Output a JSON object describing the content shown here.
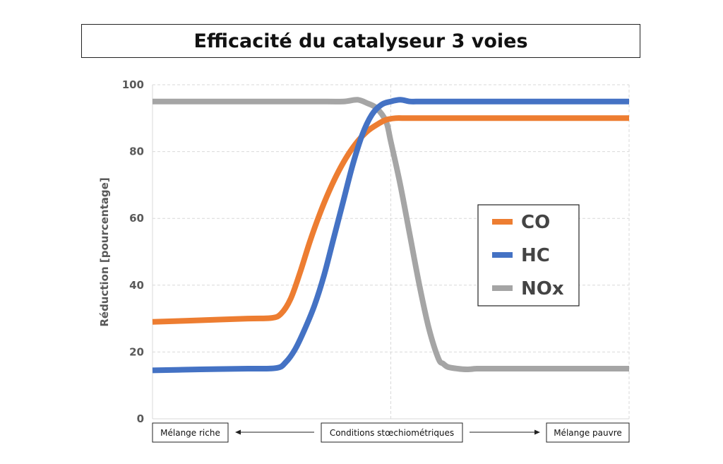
{
  "chart_data": {
    "type": "line",
    "title": "Efficacité du catalyseur 3 voies",
    "ylabel": "Réduction [pourcentage]",
    "xlabel": "",
    "ylim": [
      0,
      100
    ],
    "yticks": [
      0,
      20,
      40,
      60,
      80,
      100
    ],
    "xlim": [
      0,
      100
    ],
    "grid": true,
    "legend_position": "right",
    "x_annotations": {
      "left": "Mélange riche",
      "center": "Conditions stœchiométriques",
      "right": "Mélange pauvre"
    },
    "series": [
      {
        "name": "CO",
        "color": "#ED7D31",
        "x": [
          0,
          10,
          20,
          25,
          27,
          29,
          31,
          33,
          35,
          37,
          39,
          41,
          43,
          45,
          47,
          49,
          51,
          53,
          55,
          57,
          60,
          70,
          80,
          90,
          100
        ],
        "y": [
          29,
          29.5,
          30,
          30.2,
          31.5,
          36,
          44,
          53,
          61,
          68,
          74,
          79,
          83,
          86,
          88,
          89.5,
          90,
          90,
          90,
          90,
          90,
          90,
          90,
          90,
          90
        ]
      },
      {
        "name": "HC",
        "color": "#4472C4",
        "x": [
          0,
          10,
          20,
          26,
          28,
          30,
          32,
          34,
          36,
          38,
          40,
          42,
          44,
          46,
          48,
          50,
          52,
          54,
          56,
          58,
          60,
          70,
          80,
          90,
          100
        ],
        "y": [
          14.5,
          14.8,
          15,
          15.2,
          17,
          21,
          27,
          34,
          43,
          54,
          65,
          76,
          85,
          91,
          94,
          95,
          95.5,
          95,
          95,
          95,
          95,
          95,
          95,
          95,
          95
        ]
      },
      {
        "name": "NOx",
        "color": "#A5A5A5",
        "x": [
          0,
          10,
          20,
          30,
          35,
          40,
          43,
          45,
          47,
          49,
          50,
          52,
          54,
          56,
          58,
          60,
          61,
          62,
          64,
          66,
          68,
          70,
          80,
          90,
          100
        ],
        "y": [
          95,
          95,
          95,
          95,
          95,
          95,
          95.5,
          94.5,
          93,
          89,
          83,
          70,
          55,
          40,
          27,
          18,
          16.5,
          15.5,
          15,
          14.8,
          15,
          15,
          15,
          15,
          15
        ]
      }
    ]
  }
}
